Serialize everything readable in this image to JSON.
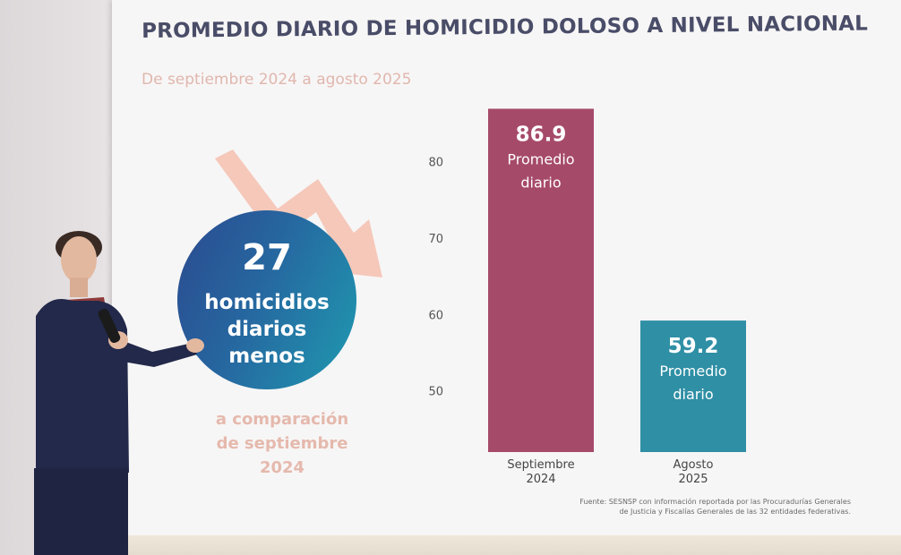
{
  "slide": {
    "title": "PROMEDIO DIARIO DE HOMICIDIO DOLOSO A NIVEL NACIONAL",
    "subtitle": "De septiembre 2024 a agosto 2025",
    "callout": {
      "number": "27",
      "line1": "homicidios",
      "line2": "diarios",
      "line3": "menos"
    },
    "comparison": {
      "line1": "a comparación",
      "line2": "de septiembre",
      "line3": "2024"
    },
    "source": {
      "line1": "Fuente: SESNSP con información reportada por las Procuradurías Generales",
      "line2": "de Justicia y Fiscalías Generales de las 32 entidades federativas."
    },
    "colors": {
      "title": "#4a4d68",
      "subtitle": "#e0b7ae",
      "bar_sept": "#a64a6a",
      "bar_ago": "#2f8fa5",
      "arrow": "#f4c3b4"
    }
  },
  "chart_data": {
    "type": "bar",
    "categories": [
      "Septiembre 2024",
      "Agosto 2025"
    ],
    "values": [
      86.9,
      59.2
    ],
    "category_lines": [
      [
        "Septiembre",
        "2024"
      ],
      [
        "Agosto",
        "2025"
      ]
    ],
    "bar_labels": [
      {
        "value": "86.9",
        "line1": "Promedio",
        "line2": "diario"
      },
      {
        "value": "59.2",
        "line1": "Promedio",
        "line2": "diario"
      }
    ],
    "yticks": [
      50,
      60,
      70,
      80
    ],
    "ylim": [
      42,
      90
    ],
    "grid": false,
    "colors": [
      "#a64a6a",
      "#2f8fa5"
    ]
  }
}
